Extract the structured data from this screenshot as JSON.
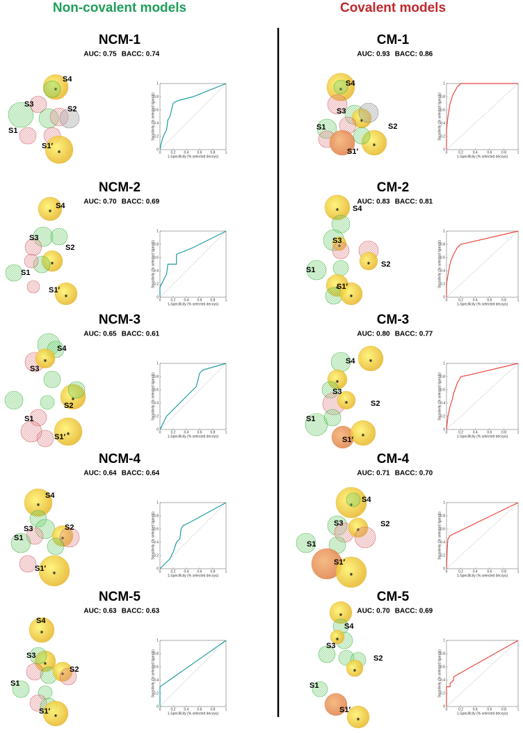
{
  "headers": [
    "Non-covalent models",
    "Covalent models"
  ],
  "sites": [
    [
      "S4",
      "S3",
      "S2",
      "S1",
      "S1′"
    ],
    [
      "S4",
      "S3",
      "S2",
      "S1",
      "S1′"
    ],
    [
      "S4",
      "S3",
      "S2",
      "S1",
      "S1′"
    ],
    [
      "S4",
      "S3",
      "S2",
      "S1",
      "S1′"
    ],
    [
      "S4",
      "S3",
      "S2",
      "S1",
      "S1′"
    ],
    [
      "S4",
      "S3",
      "S2",
      "S1",
      "S1′"
    ],
    [
      "S4",
      "S3",
      "S2",
      "S1",
      "S1′"
    ],
    [
      "S4",
      "S3",
      "S2",
      "S1",
      "S1′"
    ],
    [
      "S4",
      "S3",
      "S2",
      "S1",
      "S1′"
    ],
    [
      "S4",
      "S3",
      "S2",
      "S1",
      "S1′"
    ]
  ],
  "chart_data": [
    {
      "type": "line",
      "title": "NCM-1",
      "annotations": [
        "AUC: 0.75",
        "BACC: 0.74"
      ],
      "xlabel": "1-Specificity (% selected decoys)",
      "ylabel": "Sensitivity (% selected ligands)",
      "x": [
        0,
        0.02,
        0.05,
        0.1,
        0.12,
        0.15,
        0.18,
        0.2,
        0.22,
        0.3,
        0.5,
        1
      ],
      "series": [
        {
          "color": "#1a9ba0",
          "values": [
            0,
            0.1,
            0.2,
            0.3,
            0.45,
            0.5,
            0.62,
            0.7,
            0.72,
            0.75,
            0.8,
            1
          ]
        }
      ],
      "xlim": [
        0,
        1
      ],
      "ylim": [
        0,
        1
      ],
      "xticks": [
        0,
        0.2,
        0.4,
        0.6,
        0.8,
        1
      ],
      "yticks": [
        0,
        0.2,
        0.4,
        0.6,
        0.8,
        1
      ]
    },
    {
      "type": "line",
      "title": "NCM-2",
      "annotations": [
        "AUC: 0.70",
        "BACC: 0.69"
      ],
      "xlabel": "1-Specificity (% selected decoys)",
      "ylabel": "Sensitivity (% selected ligands)",
      "x": [
        0,
        0,
        0.05,
        0.1,
        0.12,
        0.15,
        0.25,
        0.25,
        0.5,
        1
      ],
      "series": [
        {
          "color": "#1a9ba0",
          "values": [
            0,
            0.15,
            0.25,
            0.35,
            0.5,
            0.5,
            0.5,
            0.65,
            0.75,
            1
          ]
        }
      ],
      "xlim": [
        0,
        1
      ],
      "ylim": [
        0,
        1
      ],
      "xticks": [
        0,
        0.2,
        0.4,
        0.6,
        0.8,
        1
      ],
      "yticks": [
        0,
        0.2,
        0.4,
        0.6,
        0.8,
        1
      ]
    },
    {
      "type": "line",
      "title": "NCM-3",
      "annotations": [
        "AUC: 0.65",
        "BACC: 0.61"
      ],
      "xlabel": "1-Specificity (% selected decoys)",
      "ylabel": "Sensitivity (% selected ligands)",
      "x": [
        0,
        0.05,
        0.1,
        0.15,
        0.2,
        0.25,
        0.3,
        0.35,
        0.4,
        0.45,
        0.5,
        0.55,
        0.6,
        0.65,
        1
      ],
      "series": [
        {
          "color": "#1a9ba0",
          "values": [
            0,
            0.1,
            0.2,
            0.25,
            0.3,
            0.35,
            0.4,
            0.45,
            0.5,
            0.55,
            0.6,
            0.65,
            0.85,
            0.9,
            1
          ]
        }
      ],
      "xlim": [
        0,
        1
      ],
      "ylim": [
        0,
        1
      ],
      "xticks": [
        0,
        0.2,
        0.4,
        0.6,
        0.8,
        1
      ],
      "yticks": [
        0,
        0.2,
        0.4,
        0.6,
        0.8,
        1
      ]
    },
    {
      "type": "line",
      "title": "NCM-4",
      "annotations": [
        "AUC: 0.64",
        "BACC: 0.64"
      ],
      "xlabel": "1-Specificity (% selected decoys)",
      "ylabel": "Sensitivity (% selected ligands)",
      "x": [
        0,
        0.05,
        0.1,
        0.15,
        0.2,
        0.25,
        0.3,
        0.32,
        0.35,
        0.45,
        1
      ],
      "series": [
        {
          "color": "#1a9ba0",
          "values": [
            0,
            0.05,
            0.1,
            0.15,
            0.25,
            0.4,
            0.45,
            0.6,
            0.65,
            0.7,
            1
          ]
        }
      ],
      "xlim": [
        0,
        1
      ],
      "ylim": [
        0,
        1
      ],
      "xticks": [
        0,
        0.2,
        0.4,
        0.6,
        0.8,
        1
      ],
      "yticks": [
        0,
        0.2,
        0.4,
        0.6,
        0.8,
        1
      ]
    },
    {
      "type": "line",
      "title": "NCM-5",
      "annotations": [
        "AUC: 0.63",
        "BACC: 0.63"
      ],
      "xlabel": "1-Specificity (% selected decoys)",
      "ylabel": "Sensitivity (% selected ligands)",
      "x": [
        0,
        0,
        1
      ],
      "series": [
        {
          "color": "#1a9ba0",
          "values": [
            0,
            0.3,
            1
          ]
        }
      ],
      "xlim": [
        0,
        1
      ],
      "ylim": [
        0,
        1
      ],
      "xticks": [
        0,
        0.2,
        0.4,
        0.6,
        0.8,
        1
      ],
      "yticks": [
        0,
        0.2,
        0.4,
        0.6,
        0.8,
        1
      ]
    },
    {
      "type": "line",
      "title": "CM-1",
      "annotations": [
        "AUC: 0.93",
        "BACC: 0.86"
      ],
      "xlabel": "1-Specificity (% selected decoys)",
      "ylabel": "Sensitivity (% selected ligands)",
      "x": [
        0,
        0,
        0.02,
        0.05,
        0.08,
        0.1,
        0.15,
        0.2,
        1
      ],
      "series": [
        {
          "color": "#e8463c",
          "values": [
            0,
            0.3,
            0.5,
            0.7,
            0.8,
            0.85,
            0.95,
            1,
            1
          ]
        }
      ],
      "xlim": [
        0,
        1
      ],
      "ylim": [
        0,
        1
      ],
      "xticks": [
        0,
        0.2,
        0.4,
        0.6,
        0.8,
        1
      ],
      "yticks": [
        0,
        0.2,
        0.4,
        0.6,
        0.8,
        1
      ]
    },
    {
      "type": "line",
      "title": "CM-2",
      "annotations": [
        "AUC: 0.83",
        "BACC: 0.81"
      ],
      "xlabel": "1-Specificity (% selected decoys)",
      "ylabel": "Sensitivity (% selected ligands)",
      "x": [
        0,
        0,
        0.03,
        0.06,
        0.1,
        0.15,
        0.2,
        1
      ],
      "series": [
        {
          "color": "#e8463c",
          "values": [
            0,
            0.2,
            0.4,
            0.55,
            0.65,
            0.75,
            0.8,
            1
          ]
        }
      ],
      "xlim": [
        0,
        1
      ],
      "ylim": [
        0,
        1
      ],
      "xticks": [
        0,
        0.2,
        0.4,
        0.6,
        0.8,
        1
      ],
      "yticks": [
        0,
        0.2,
        0.4,
        0.6,
        0.8,
        1
      ]
    },
    {
      "type": "line",
      "title": "CM-3",
      "annotations": [
        "AUC: 0.80",
        "BACC: 0.77"
      ],
      "xlabel": "1-Specificity (% selected decoys)",
      "ylabel": "Sensitivity (% selected ligands)",
      "x": [
        0,
        0.02,
        0.05,
        0.08,
        0.1,
        0.15,
        0.2,
        0.3,
        1
      ],
      "series": [
        {
          "color": "#e8463c",
          "values": [
            0,
            0.2,
            0.35,
            0.45,
            0.55,
            0.7,
            0.8,
            0.82,
            1
          ]
        }
      ],
      "xlim": [
        0,
        1
      ],
      "ylim": [
        0,
        1
      ],
      "xticks": [
        0,
        0.2,
        0.4,
        0.6,
        0.8,
        1
      ],
      "yticks": [
        0,
        0.2,
        0.4,
        0.6,
        0.8,
        1
      ]
    },
    {
      "type": "line",
      "title": "CM-4",
      "annotations": [
        "AUC: 0.71",
        "BACC: 0.70"
      ],
      "xlabel": "1-Specificity (% selected decoys)",
      "ylabel": "Sensitivity (% selected ligands)",
      "x": [
        0,
        0.01,
        0.02,
        0.05,
        1
      ],
      "series": [
        {
          "color": "#e8463c",
          "values": [
            0,
            0.3,
            0.45,
            0.5,
            1
          ]
        }
      ],
      "xlim": [
        0,
        1
      ],
      "ylim": [
        0,
        1
      ],
      "xticks": [
        0,
        0.2,
        0.4,
        0.6,
        0.8,
        1
      ],
      "yticks": [
        0,
        0.2,
        0.4,
        0.6,
        0.8,
        1
      ]
    },
    {
      "type": "line",
      "title": "CM-5",
      "annotations": [
        "AUC: 0.70",
        "BACC: 0.69"
      ],
      "xlabel": "1-Specificity (% selected decoys)",
      "ylabel": "Sensitivity (% selected ligands)",
      "x": [
        0,
        0,
        0.05,
        0.05,
        0.1,
        0.1,
        1
      ],
      "series": [
        {
          "color": "#e8463c",
          "values": [
            0,
            0.3,
            0.3,
            0.35,
            0.4,
            0.45,
            1
          ]
        }
      ],
      "xlim": [
        0,
        1
      ],
      "ylim": [
        0,
        1
      ],
      "xticks": [
        0,
        0.2,
        0.4,
        0.6,
        0.8,
        1
      ],
      "yticks": [
        0,
        0.2,
        0.4,
        0.6,
        0.8,
        1
      ]
    }
  ]
}
